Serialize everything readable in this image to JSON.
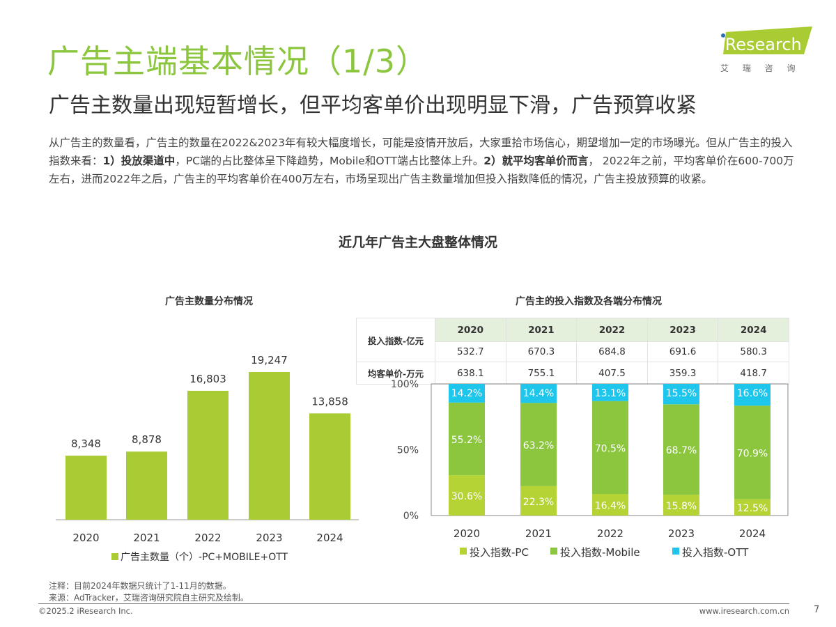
{
  "header": {
    "title": "广告主端基本情况（1/3）",
    "subtitle": "广告主数量出现短暂增长，但平均客单价出现明显下滑，广告预算收紧",
    "logo_text": "iResearch",
    "logo_cn": "艾 瑞 咨 询"
  },
  "paragraph": {
    "p1": "从广告主的数量看，广告主的数量在2022&2023年有较大幅度增长，可能是疫情开放后，大家重拾市场信心，期望增加一定的市场曝光。但从广告主的投入指数来看：",
    "b1": "1）投放渠道中",
    "p2": "，PC端的占比整体呈下降趋势，Mobile和OTT端占比整体上升。",
    "b2": "2）就平均客单价而言",
    "p3": "， 2022年之前，平均客单价在600-700万左右，进而2022年之后，广告主的平均客单价在400万左右，市场呈现出广告主数量增加但投入指数降低的情况，广告主投放预算的收紧。"
  },
  "main_heading": "近几年广告主大盘整体情况",
  "chart_data": [
    {
      "type": "bar",
      "title": "广告主数量分布情况",
      "categories": [
        "2020",
        "2021",
        "2022",
        "2023",
        "2024"
      ],
      "series": [
        {
          "name": "广告主数量（个）-PC+MOBILE+OTT",
          "values": [
            8348,
            8878,
            16803,
            19247,
            13858
          ],
          "labels": [
            "8,348",
            "8,878",
            "16,803",
            "19,247",
            "13,858"
          ],
          "color": "#a9cc34"
        }
      ],
      "legend": "bottom"
    },
    {
      "type": "bar",
      "stacked": true,
      "percent": true,
      "title": "广告主的投入指数及各端分布情况",
      "categories": [
        "2020",
        "2021",
        "2022",
        "2023",
        "2024"
      ],
      "yticks": [
        "0%",
        "50%",
        "100%"
      ],
      "series": [
        {
          "name": "投入指数-PC",
          "values": [
            30.6,
            22.3,
            16.4,
            15.8,
            12.5
          ],
          "color": "#b5d334"
        },
        {
          "name": "投入指数-Mobile",
          "values": [
            55.2,
            63.2,
            70.5,
            68.7,
            70.9
          ],
          "color": "#8cc63f"
        },
        {
          "name": "投入指数-OTT",
          "values": [
            14.2,
            14.4,
            13.1,
            15.5,
            16.6
          ],
          "color": "#1fc6ec"
        }
      ],
      "legend": "bottom",
      "table": {
        "header": [
          "2020",
          "2021",
          "2022",
          "2023",
          "2024"
        ],
        "rows": [
          {
            "label": "投入指数-亿元",
            "values": [
              "532.7",
              "670.3",
              "684.8",
              "691.6",
              "580.3"
            ]
          },
          {
            "label": "均客单价-万元",
            "values": [
              "638.1",
              "755.1",
              "407.5",
              "359.3",
              "418.7"
            ]
          }
        ]
      }
    }
  ],
  "footer": {
    "note": "注释：目前2024年数据只统计了1-11月的数据。",
    "source": "来源：AdTracker，艾瑞咨询研究院自主研究及绘制。",
    "copyright": "©2025.2 iResearch Inc.",
    "website": "www.iresearch.com.cn",
    "page": "7"
  }
}
